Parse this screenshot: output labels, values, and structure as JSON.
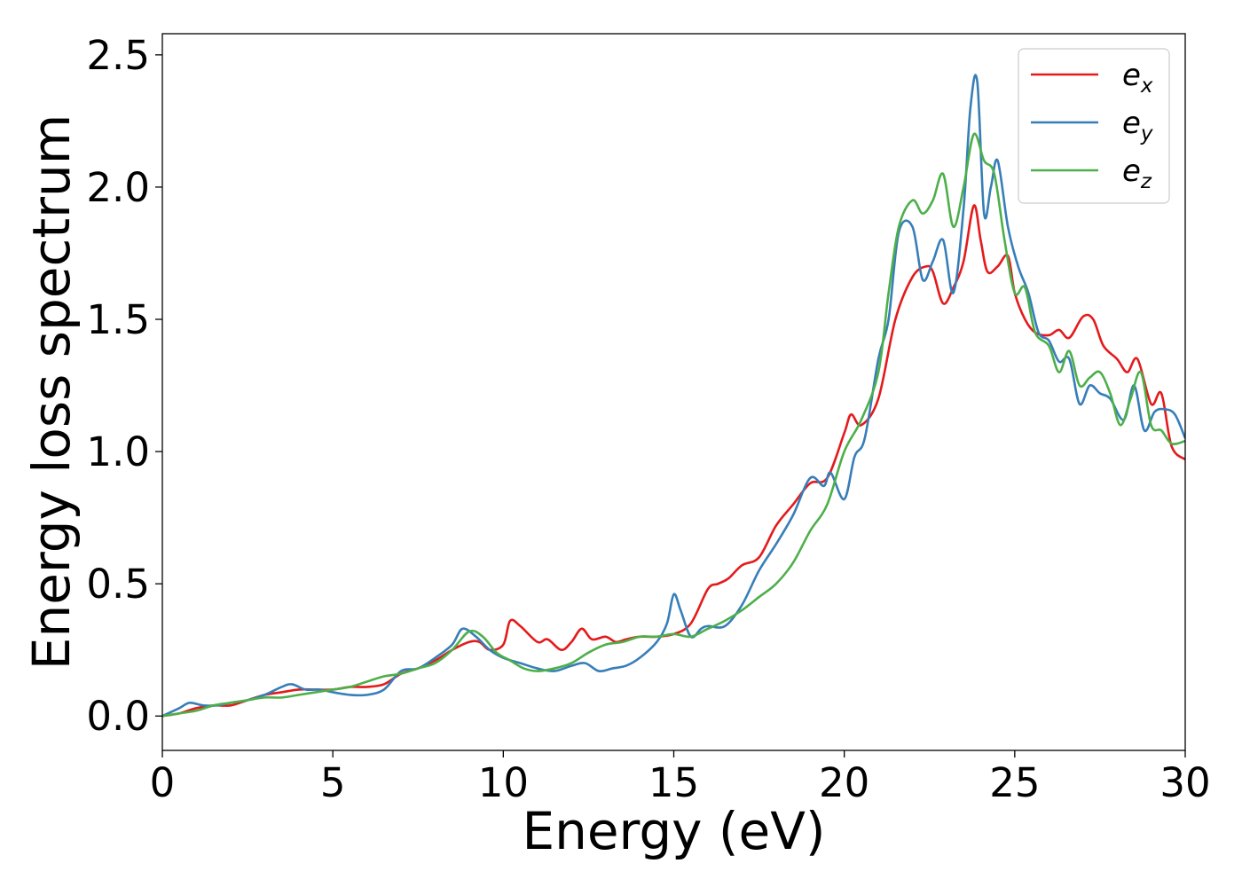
{
  "chart_data": {
    "type": "line",
    "title": "",
    "xlabel": "Energy (eV)",
    "ylabel": "Energy loss spectrum",
    "xlim": [
      0,
      30
    ],
    "ylim": [
      -0.13,
      2.58
    ],
    "xticks": [
      0,
      5,
      10,
      15,
      20,
      25,
      30
    ],
    "xtick_labels": [
      "0",
      "5",
      "10",
      "15",
      "20",
      "25",
      "30"
    ],
    "yticks": [
      0.0,
      0.5,
      1.0,
      1.5,
      2.0,
      2.5
    ],
    "ytick_labels": [
      "0.0",
      "0.5",
      "1.0",
      "1.5",
      "2.0",
      "2.5"
    ],
    "grid": false,
    "legend_position": "top-right",
    "series": [
      {
        "name": "e_x",
        "label_base": "e",
        "label_sub": "x",
        "color": "#e41a1c",
        "x": [
          0,
          0.5,
          1,
          1.5,
          2,
          2.5,
          3,
          3.5,
          4,
          4.5,
          5,
          5.5,
          6,
          6.5,
          7,
          7.5,
          8,
          8.5,
          9,
          9.3,
          9.6,
          10,
          10.2,
          10.5,
          11,
          11.3,
          11.7,
          12,
          12.3,
          12.6,
          13,
          13.3,
          13.6,
          14,
          14.5,
          15,
          15.5,
          16,
          16.3,
          16.6,
          17,
          17.5,
          18,
          18.5,
          19,
          19.5,
          20,
          20.2,
          20.5,
          21,
          21.5,
          22,
          22.4,
          22.6,
          22.9,
          23.2,
          23.5,
          23.8,
          24,
          24.2,
          24.5,
          24.8,
          25,
          25.3,
          25.6,
          26,
          26.3,
          26.6,
          27,
          27.3,
          27.6,
          28,
          28.3,
          28.6,
          29,
          29.3,
          29.6,
          30
        ],
        "y": [
          0.0,
          0.01,
          0.03,
          0.04,
          0.04,
          0.06,
          0.08,
          0.09,
          0.1,
          0.1,
          0.1,
          0.11,
          0.11,
          0.12,
          0.16,
          0.18,
          0.21,
          0.25,
          0.28,
          0.28,
          0.25,
          0.27,
          0.36,
          0.34,
          0.28,
          0.29,
          0.25,
          0.28,
          0.33,
          0.29,
          0.3,
          0.28,
          0.29,
          0.3,
          0.3,
          0.31,
          0.35,
          0.48,
          0.5,
          0.52,
          0.57,
          0.6,
          0.72,
          0.8,
          0.88,
          0.9,
          1.07,
          1.14,
          1.1,
          1.2,
          1.5,
          1.66,
          1.7,
          1.68,
          1.56,
          1.62,
          1.72,
          1.93,
          1.8,
          1.68,
          1.7,
          1.74,
          1.6,
          1.5,
          1.45,
          1.44,
          1.46,
          1.43,
          1.51,
          1.5,
          1.4,
          1.35,
          1.3,
          1.35,
          1.18,
          1.22,
          1.02,
          0.97
        ]
      },
      {
        "name": "e_y",
        "label_base": "e",
        "label_sub": "y",
        "color": "#377eb8",
        "x": [
          0,
          0.5,
          0.8,
          1.2,
          1.6,
          2,
          2.5,
          3,
          3.5,
          3.8,
          4.2,
          4.6,
          5,
          5.5,
          6,
          6.5,
          7,
          7.5,
          8,
          8.5,
          8.8,
          9.2,
          9.6,
          10,
          10.5,
          11,
          11.5,
          12,
          12.4,
          12.8,
          13.2,
          13.6,
          14,
          14.5,
          14.8,
          15,
          15.2,
          15.5,
          15.8,
          16,
          16.5,
          17,
          17.5,
          18,
          18.5,
          19,
          19.4,
          19.6,
          20,
          20.3,
          20.6,
          21,
          21.3,
          21.6,
          22,
          22.3,
          22.6,
          22.9,
          23.2,
          23.5,
          23.7,
          23.9,
          24.1,
          24.3,
          24.5,
          24.8,
          25.1,
          25.4,
          25.7,
          26,
          26.3,
          26.6,
          26.9,
          27.2,
          27.5,
          27.8,
          28.2,
          28.5,
          28.8,
          29.1,
          29.4,
          29.7,
          30
        ],
        "y": [
          0.0,
          0.03,
          0.05,
          0.04,
          0.04,
          0.05,
          0.06,
          0.08,
          0.11,
          0.12,
          0.1,
          0.1,
          0.09,
          0.08,
          0.08,
          0.1,
          0.17,
          0.18,
          0.22,
          0.27,
          0.33,
          0.3,
          0.25,
          0.22,
          0.2,
          0.18,
          0.17,
          0.19,
          0.2,
          0.17,
          0.18,
          0.19,
          0.22,
          0.28,
          0.35,
          0.46,
          0.4,
          0.3,
          0.33,
          0.34,
          0.34,
          0.42,
          0.55,
          0.65,
          0.76,
          0.9,
          0.87,
          0.92,
          0.82,
          0.98,
          1.05,
          1.35,
          1.5,
          1.83,
          1.85,
          1.65,
          1.72,
          1.8,
          1.6,
          1.92,
          2.3,
          2.4,
          1.9,
          2.0,
          2.1,
          1.85,
          1.7,
          1.6,
          1.45,
          1.42,
          1.34,
          1.35,
          1.18,
          1.25,
          1.22,
          1.2,
          1.12,
          1.25,
          1.08,
          1.15,
          1.16,
          1.14,
          1.05
        ]
      },
      {
        "name": "e_z",
        "label_base": "e",
        "label_sub": "z",
        "color": "#4daf4a",
        "x": [
          0,
          0.5,
          1,
          1.5,
          2,
          2.5,
          3,
          3.5,
          4,
          4.5,
          5,
          5.5,
          6,
          6.5,
          7,
          7.5,
          8,
          8.5,
          9,
          9.4,
          9.8,
          10.2,
          10.6,
          11,
          11.5,
          12,
          12.5,
          13,
          13.5,
          14,
          14.5,
          15,
          15.5,
          16,
          16.5,
          17,
          17.5,
          18,
          18.5,
          19,
          19.5,
          20,
          20.5,
          21,
          21.3,
          21.6,
          22,
          22.3,
          22.6,
          22.9,
          23.2,
          23.5,
          23.8,
          24.1,
          24.4,
          24.7,
          25,
          25.3,
          25.6,
          26,
          26.3,
          26.6,
          26.9,
          27.2,
          27.5,
          27.8,
          28.1,
          28.4,
          28.7,
          29,
          29.3,
          29.6,
          30
        ],
        "y": [
          0.0,
          0.01,
          0.02,
          0.04,
          0.05,
          0.06,
          0.07,
          0.07,
          0.08,
          0.09,
          0.1,
          0.11,
          0.13,
          0.15,
          0.16,
          0.18,
          0.2,
          0.25,
          0.32,
          0.3,
          0.24,
          0.21,
          0.18,
          0.17,
          0.18,
          0.2,
          0.24,
          0.27,
          0.28,
          0.3,
          0.3,
          0.31,
          0.3,
          0.33,
          0.36,
          0.4,
          0.45,
          0.5,
          0.58,
          0.7,
          0.8,
          1.0,
          1.12,
          1.3,
          1.6,
          1.85,
          1.95,
          1.9,
          1.95,
          2.05,
          1.85,
          2.0,
          2.2,
          2.1,
          2.05,
          1.8,
          1.6,
          1.62,
          1.45,
          1.4,
          1.3,
          1.38,
          1.25,
          1.28,
          1.3,
          1.22,
          1.1,
          1.2,
          1.3,
          1.1,
          1.08,
          1.03,
          1.04
        ]
      }
    ]
  }
}
